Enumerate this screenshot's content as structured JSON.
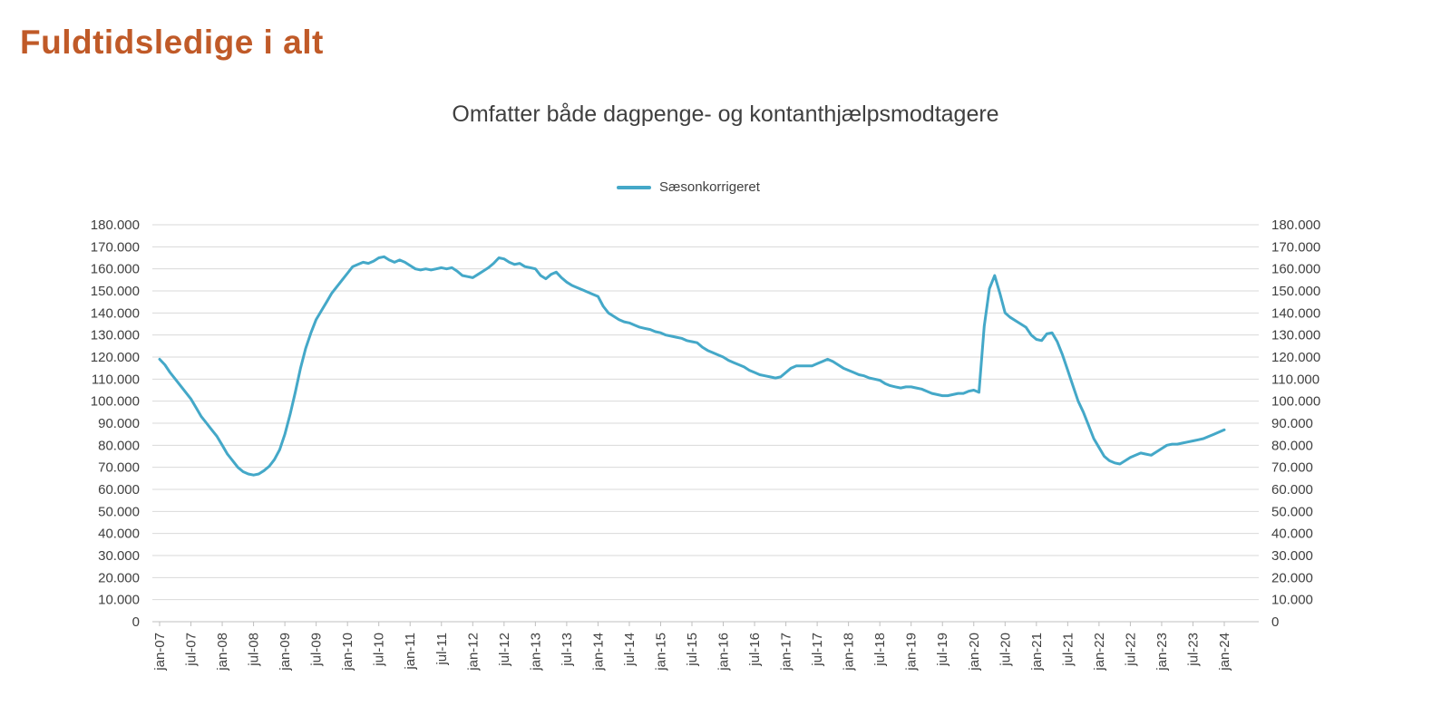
{
  "page": {
    "title": "Fuldtidsledige i alt"
  },
  "colors": {
    "title": "#c05a28",
    "series": "#44a8c8",
    "gridline": "#d9d9d9",
    "axis_line": "#bfbfbf",
    "axis_text": "#404040"
  },
  "chart_data": {
    "type": "line",
    "title": "Omfatter både dagpenge- og kontanthjælpsmodtagere",
    "legend_position": "top",
    "grid": true,
    "ylim": [
      0,
      180000
    ],
    "y_tick_step": 10000,
    "y_axis_sides": [
      "left",
      "right"
    ],
    "x_label_every_n_months": 6,
    "x_tick_labels": [
      "jan-07",
      "jul-07",
      "jan-08",
      "jul-08",
      "jan-09",
      "jul-09",
      "jan-10",
      "jul-10",
      "jan-11",
      "jul-11",
      "jan-12",
      "jul-12",
      "jan-13",
      "jul-13",
      "jan-14",
      "jul-14",
      "jan-15",
      "jul-15",
      "jan-16",
      "jul-16",
      "jan-17",
      "jul-17",
      "jan-18",
      "jul-18",
      "jan-19",
      "jul-19",
      "jan-20",
      "jul-20",
      "jan-21",
      "jul-21",
      "jan-22",
      "jul-22",
      "jan-23",
      "jul-23",
      "jan-24"
    ],
    "series": [
      {
        "name": "Sæsonkorrigeret",
        "color": "#44a8c8",
        "start_month": "jan-07",
        "end_month": "jan-24",
        "values": [
          119000,
          116500,
          113000,
          110000,
          107000,
          104000,
          101000,
          97000,
          93000,
          90000,
          87000,
          84000,
          80000,
          76000,
          73000,
          70000,
          68000,
          67000,
          66500,
          67000,
          68500,
          70500,
          73500,
          78000,
          85000,
          94000,
          104000,
          115000,
          124000,
          131000,
          137000,
          141000,
          145000,
          149000,
          152000,
          155000,
          158000,
          161000,
          162000,
          163000,
          162500,
          163500,
          165000,
          165500,
          164000,
          163000,
          164000,
          163000,
          161500,
          160000,
          159500,
          160000,
          159500,
          160000,
          160500,
          160000,
          160500,
          159000,
          157000,
          156500,
          156000,
          157500,
          159000,
          160500,
          162500,
          165000,
          164500,
          163000,
          162000,
          162500,
          161000,
          160500,
          160000,
          157000,
          155500,
          157500,
          158500,
          156000,
          154000,
          152500,
          151500,
          150500,
          149500,
          148500,
          147500,
          143000,
          140000,
          138500,
          137000,
          136000,
          135500,
          134500,
          133500,
          133000,
          132500,
          131500,
          131000,
          130000,
          129500,
          129000,
          128500,
          127500,
          127000,
          126500,
          124500,
          123000,
          122000,
          121000,
          120000,
          118500,
          117500,
          116500,
          115500,
          114000,
          113000,
          112000,
          111500,
          111000,
          110500,
          111000,
          113000,
          115000,
          116000,
          116000,
          116000,
          116000,
          117000,
          118000,
          119000,
          118000,
          116500,
          115000,
          114000,
          113000,
          112000,
          111500,
          110500,
          110000,
          109500,
          108000,
          107000,
          106500,
          106000,
          106500,
          106500,
          106000,
          105500,
          104500,
          103500,
          103000,
          102500,
          102500,
          103000,
          103500,
          103500,
          104500,
          105000,
          104000,
          134000,
          151000,
          157000,
          149000,
          140000,
          138000,
          136500,
          135000,
          133500,
          130000,
          128000,
          127500,
          130500,
          131000,
          127000,
          121000,
          114000,
          107000,
          100000,
          95000,
          89000,
          83000,
          79000,
          75000,
          73000,
          72000,
          71500,
          73000,
          74500,
          75500,
          76500,
          76000,
          75500,
          77000,
          78500,
          80000,
          80500,
          80500,
          81000,
          81500,
          82000,
          82500,
          83000,
          84000,
          85000,
          86000,
          87000
        ]
      }
    ]
  }
}
